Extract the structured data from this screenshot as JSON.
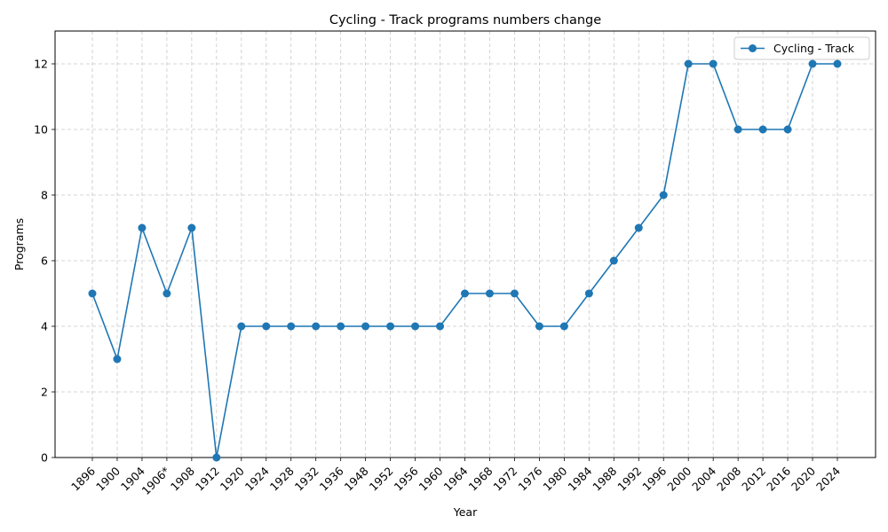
{
  "chart_data": {
    "type": "line",
    "title": "Cycling - Track programs numbers change",
    "xlabel": "Year",
    "ylabel": "Programs",
    "categories": [
      "1896",
      "1900",
      "1904",
      "1906*",
      "1908",
      "1912",
      "1920",
      "1924",
      "1928",
      "1932",
      "1936",
      "1948",
      "1952",
      "1956",
      "1960",
      "1964",
      "1968",
      "1972",
      "1976",
      "1980",
      "1984",
      "1988",
      "1992",
      "1996",
      "2000",
      "2004",
      "2008",
      "2012",
      "2016",
      "2020",
      "2024"
    ],
    "series": [
      {
        "name": "Cycling - Track",
        "values": [
          5,
          3,
          7,
          5,
          7,
          0,
          4,
          4,
          4,
          4,
          4,
          4,
          4,
          4,
          4,
          5,
          5,
          5,
          4,
          4,
          5,
          6,
          7,
          8,
          12,
          12,
          10,
          10,
          10,
          12,
          12
        ],
        "color": "#1f77b4"
      }
    ],
    "ylim": [
      0,
      13
    ],
    "yticks": [
      0,
      2,
      4,
      6,
      8,
      10,
      12
    ],
    "grid": true,
    "legend_position": "top-right",
    "x_tick_rotation": "45 degrees"
  }
}
